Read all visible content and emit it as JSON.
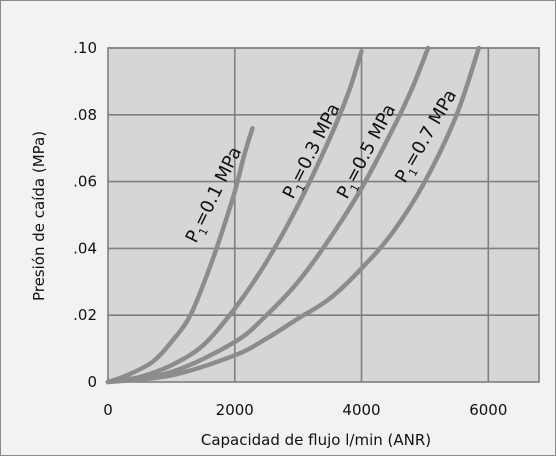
{
  "colors": {
    "plot_bg": "#d6d6d6",
    "grid": "#7f7f7f",
    "curve": "#8c8c8c",
    "frame_bg": "#f2f2f2"
  },
  "chart_data": {
    "type": "line",
    "title": "",
    "xlabel": "Capacidad de flujo l/min (ANR)",
    "ylabel": "Presión de caída (MPa)",
    "xlim": [
      0,
      6800
    ],
    "ylim": [
      0,
      0.1
    ],
    "grid": true,
    "x_ticks": [
      {
        "value": 0,
        "label": "0"
      },
      {
        "value": 2000,
        "label": "2000"
      },
      {
        "value": 4000,
        "label": "4000"
      },
      {
        "value": 6000,
        "label": "6000"
      }
    ],
    "y_ticks": [
      {
        "value": 0,
        "label": "0"
      },
      {
        "value": 0.02,
        "label": ".02"
      },
      {
        "value": 0.04,
        "label": ".04"
      },
      {
        "value": 0.06,
        "label": ".06"
      },
      {
        "value": 0.08,
        "label": ".08"
      },
      {
        "value": 0.1,
        "label": ".10"
      }
    ],
    "series": [
      {
        "label_main": "P",
        "label_sub": "1",
        "label_rest": "=0.1 MPa",
        "x": [
          0,
          300,
          700,
          1000,
          1300,
          1600,
          1800,
          2000,
          2150,
          2280
        ],
        "y": [
          0,
          0.002,
          0.006,
          0.012,
          0.02,
          0.034,
          0.045,
          0.057,
          0.068,
          0.076
        ]
      },
      {
        "label_main": "P",
        "label_sub": "1",
        "label_rest": "=0.3 MPa",
        "x": [
          0,
          500,
          1000,
          1500,
          2000,
          2500,
          3000,
          3500,
          3800,
          4000
        ],
        "y": [
          0,
          0.0015,
          0.005,
          0.011,
          0.022,
          0.036,
          0.053,
          0.073,
          0.087,
          0.099
        ]
      },
      {
        "label_main": "P",
        "label_sub": "1",
        "label_rest": "=0.5 MPa",
        "x": [
          0,
          1000,
          2000,
          2500,
          3000,
          3500,
          4000,
          4500,
          4800,
          5050
        ],
        "y": [
          0,
          0.003,
          0.012,
          0.02,
          0.03,
          0.043,
          0.058,
          0.076,
          0.088,
          0.1
        ]
      },
      {
        "label_main": "P",
        "label_sub": "1",
        "label_rest": "=0.7 MPa",
        "x": [
          0,
          1000,
          2000,
          2500,
          3000,
          3500,
          4000,
          4500,
          5000,
          5500,
          5850
        ],
        "y": [
          0,
          0.002,
          0.008,
          0.013,
          0.019,
          0.025,
          0.034,
          0.045,
          0.06,
          0.08,
          0.1
        ]
      }
    ]
  }
}
